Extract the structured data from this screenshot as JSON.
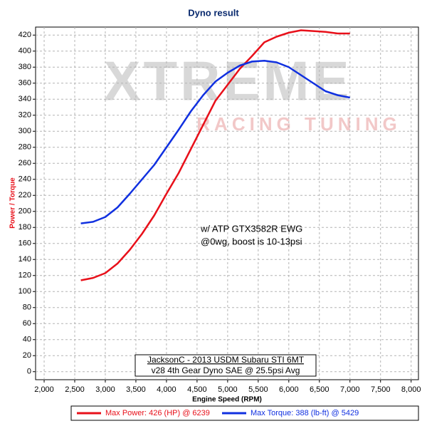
{
  "chart_data": {
    "type": "line",
    "title": "Dyno result",
    "x_label": "Engine Speed (RPM)",
    "y_label": "Power / Torque",
    "watermark": [
      "XTREME",
      "RACING TUNING"
    ],
    "annotations": [
      "w/ ATP GTX3582R EWG",
      "@0wg, boost is 10-13psi"
    ],
    "notes": [
      "JacksonC - 2013 USDM Subaru STI 6MT",
      "v28 4th Gear Dyno SAE @ 25.5psi Avg"
    ],
    "x": [
      2600,
      2800,
      3000,
      3200,
      3400,
      3600,
      3800,
      4000,
      4200,
      4400,
      4600,
      4800,
      5000,
      5200,
      5400,
      5600,
      5800,
      6000,
      6200,
      6400,
      6600,
      6800,
      7000
    ],
    "series": [
      {
        "name": "Max Power: 426 (HP) @ 6239",
        "color": "#e8101a",
        "values": [
          114,
          117,
          123,
          135,
          152,
          172,
          195,
          222,
          248,
          278,
          308,
          338,
          358,
          378,
          394,
          411,
          418,
          423,
          426,
          425,
          424,
          422,
          422
        ]
      },
      {
        "name": "Max Torque: 388 (lb-ft) @ 5429",
        "color": "#1030e0",
        "values": [
          185,
          187,
          193,
          205,
          222,
          240,
          258,
          280,
          302,
          325,
          345,
          362,
          373,
          382,
          387,
          388,
          386,
          380,
          370,
          360,
          350,
          345,
          342
        ]
      }
    ],
    "xlim": [
      1860,
      8120
    ],
    "ylim": [
      -10,
      430
    ],
    "xticks": [
      {
        "value": 2000,
        "label": "2,000"
      },
      {
        "value": 2500,
        "label": "2,500"
      },
      {
        "value": 3000,
        "label": "3,000"
      },
      {
        "value": 3500,
        "label": "3,500"
      },
      {
        "value": 4000,
        "label": "4,000"
      },
      {
        "value": 4500,
        "label": "4,500"
      },
      {
        "value": 5000,
        "label": "5,000"
      },
      {
        "value": 5500,
        "label": "5,500"
      },
      {
        "value": 6000,
        "label": "6,000"
      },
      {
        "value": 6500,
        "label": "6,500"
      },
      {
        "value": 7000,
        "label": "7,000"
      },
      {
        "value": 7500,
        "label": "7,500"
      },
      {
        "value": 8000,
        "label": "8,000"
      }
    ],
    "yticks": [
      0,
      20,
      40,
      60,
      80,
      100,
      120,
      140,
      160,
      180,
      200,
      220,
      240,
      260,
      280,
      300,
      320,
      340,
      360,
      380,
      400,
      420
    ],
    "grid": true
  }
}
